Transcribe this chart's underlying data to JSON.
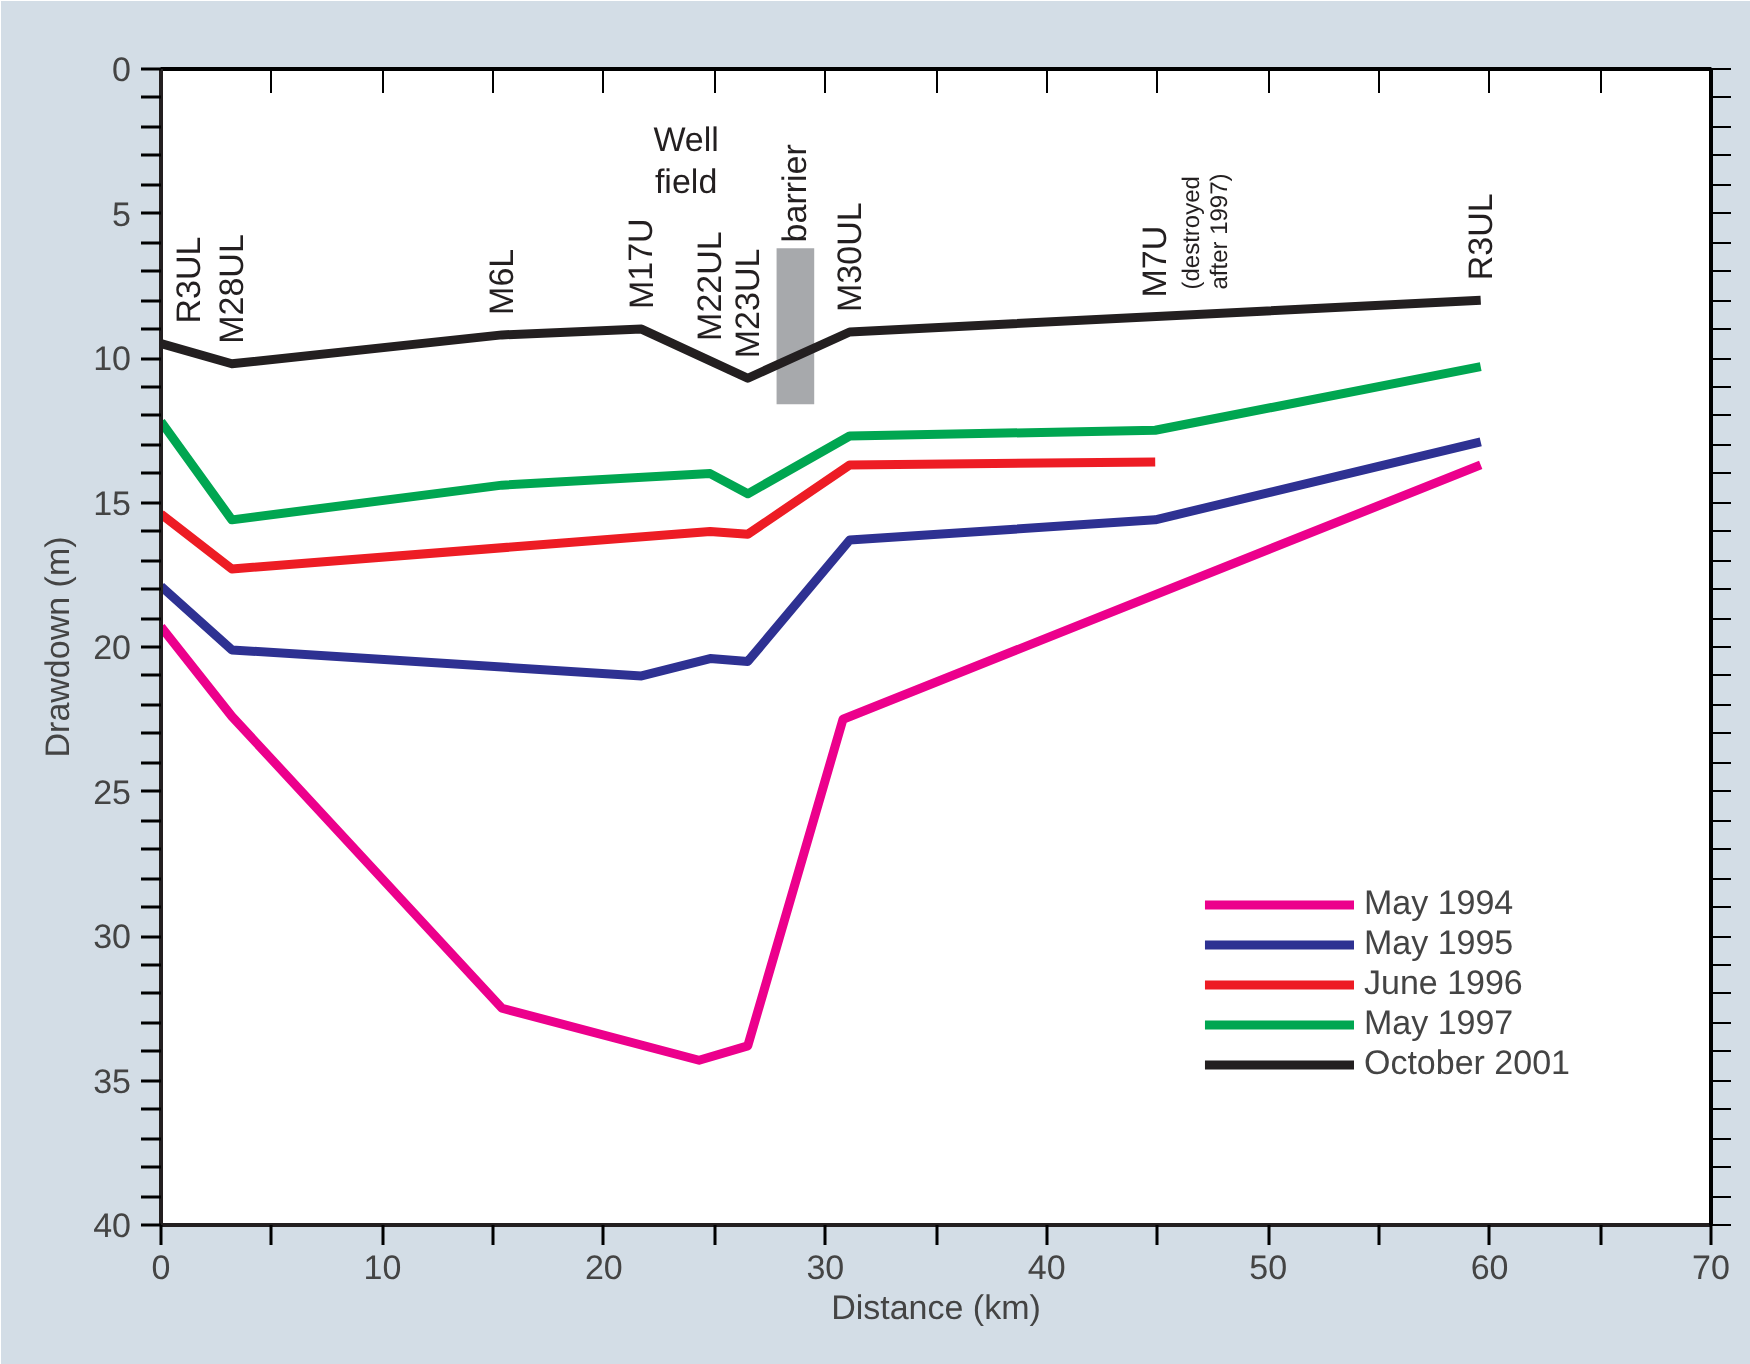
{
  "chart_data": {
    "type": "line",
    "xlabel": "Distance (km)",
    "ylabel": "Drawdown (m)",
    "xlim": [
      0,
      70
    ],
    "xticks": [
      0,
      10,
      20,
      30,
      40,
      50,
      60,
      70
    ],
    "ylim": [
      40,
      0
    ],
    "yticks": [
      0,
      5,
      10,
      15,
      20,
      25,
      30,
      35,
      40
    ],
    "grid": false,
    "legend": "bottom right",
    "line_style": "solid",
    "marker": "none",
    "series": [
      {
        "name": "May 1994",
        "color": "#ec008c",
        "x": [
          0,
          3.2,
          15.4,
          24.3,
          26.5,
          30.8,
          59.6
        ],
        "values": [
          19.3,
          22.4,
          32.5,
          34.3,
          33.8,
          22.5,
          13.7
        ]
      },
      {
        "name": "May 1995",
        "color": "#2e3192",
        "x": [
          0,
          3.2,
          21.7,
          24.8,
          26.5,
          31.1,
          44.9,
          59.6
        ],
        "values": [
          17.9,
          20.1,
          21.0,
          20.4,
          20.5,
          16.3,
          15.6,
          12.9
        ]
      },
      {
        "name": "June 1996",
        "color": "#ed1c24",
        "x": [
          0,
          3.2,
          24.8,
          26.5,
          31.1,
          44.9
        ],
        "values": [
          15.4,
          17.3,
          16.0,
          16.1,
          13.7,
          13.6
        ]
      },
      {
        "name": "May 1997",
        "color": "#00a651",
        "x": [
          0,
          3.2,
          15.4,
          24.8,
          26.5,
          31.1,
          44.9,
          59.6
        ],
        "values": [
          12.2,
          15.6,
          14.4,
          14.0,
          14.7,
          12.7,
          12.5,
          10.3
        ]
      },
      {
        "name": "October 2001",
        "color": "#231f20",
        "x": [
          0,
          3.2,
          15.4,
          21.7,
          26.5,
          31.1,
          59.6
        ],
        "values": [
          9.5,
          10.2,
          9.2,
          9.0,
          10.7,
          9.1,
          8.0
        ]
      }
    ],
    "bands": [
      {
        "axis": "x",
        "from": 27.8,
        "to": 29.5,
        "label": "barrier",
        "color": "#a7a9ac"
      }
    ],
    "annotations": [
      {
        "text": "R3UL",
        "x": 0,
        "y": 9.5
      },
      {
        "text": "M28UL",
        "x": 3.2,
        "y": 10.2
      },
      {
        "text": "M6L",
        "x": 15.4,
        "y": 9.2
      },
      {
        "text": "M17U",
        "x": 21.7,
        "y": 9.0
      },
      {
        "text": "M22UL",
        "x": 24.8,
        "y": 10.1
      },
      "Well\nfield",
      {
        "text": "M23UL",
        "x": 26.5,
        "y": 10.7
      },
      {
        "text": "M30UL",
        "x": 31.1,
        "y": 9.1
      },
      {
        "text": "M7U",
        "x": 44.9,
        "y": 8.6
      },
      "(destroyed\nafter 1997)",
      {
        "text": "R3UL",
        "x": 59.6,
        "y": 8.0
      }
    ]
  }
}
